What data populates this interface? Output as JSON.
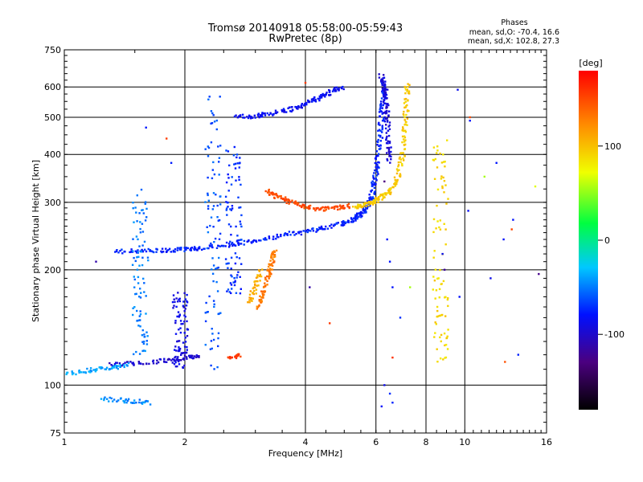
{
  "chart_data": {
    "type": "scatter",
    "title": "Tromsø 20140918 05:58:00-05:59:43",
    "subtitle": "RwPretec (8p)",
    "stats": {
      "heading": "Phases",
      "o_line": "mean, sd,O: -70.4, 16.6",
      "x_line": "mean, sd,X: 102.8, 27.3"
    },
    "xlabel": "Frequency [MHz]",
    "ylabel": "Stationary phase Virtual Height [km]",
    "x_scale": "log",
    "y_scale": "log",
    "xlim": [
      1,
      16
    ],
    "ylim": [
      75,
      750
    ],
    "x_ticks": [
      1,
      2,
      4,
      6,
      8,
      10,
      16
    ],
    "x_tick_labels": [
      "1",
      "2",
      "4",
      "6",
      "8",
      "10",
      "16"
    ],
    "y_ticks": [
      75,
      100,
      200,
      300,
      400,
      500,
      600,
      750
    ],
    "y_tick_labels": [
      "75",
      "100",
      "200",
      "300",
      "400",
      "500",
      "600",
      "750"
    ],
    "grid": true,
    "colorbar": {
      "label": "[deg]",
      "range": [
        -180,
        180
      ],
      "ticks": [
        100,
        0,
        -100
      ],
      "tick_labels": [
        "100",
        "0",
        "-100"
      ],
      "colormap": "rainbow"
    },
    "traces": [
      {
        "phase": -75,
        "points": [
          [
            1.35,
            223
          ],
          [
            1.55,
            224
          ],
          [
            1.8,
            225
          ],
          [
            2.0,
            226
          ],
          [
            2.2,
            228
          ],
          [
            2.6,
            232
          ],
          [
            3.0,
            238
          ],
          [
            3.5,
            246
          ],
          [
            4.0,
            252
          ],
          [
            4.5,
            258
          ],
          [
            5.0,
            265
          ],
          [
            5.3,
            272
          ],
          [
            5.5,
            280
          ],
          [
            5.7,
            290
          ],
          [
            5.85,
            310
          ],
          [
            5.95,
            340
          ],
          [
            6.05,
            380
          ],
          [
            6.15,
            440
          ],
          [
            6.2,
            500
          ],
          [
            6.25,
            560
          ],
          [
            6.3,
            620
          ]
        ]
      },
      {
        "phase": -95,
        "points": [
          [
            6.2,
            640
          ],
          [
            6.3,
            600
          ],
          [
            6.35,
            560
          ],
          [
            6.4,
            500
          ],
          [
            6.45,
            430
          ],
          [
            6.5,
            380
          ]
        ]
      },
      {
        "phase": -100,
        "points": [
          [
            1.3,
            113
          ],
          [
            1.5,
            114
          ],
          [
            1.8,
            116
          ],
          [
            2.0,
            118
          ],
          [
            2.2,
            120
          ]
        ]
      },
      {
        "phase": -85,
        "points": [
          [
            2.7,
            500
          ],
          [
            3.0,
            505
          ],
          [
            3.3,
            510
          ],
          [
            3.7,
            525
          ],
          [
            4.0,
            540
          ],
          [
            4.3,
            560
          ],
          [
            4.6,
            580
          ],
          [
            5.0,
            600
          ]
        ]
      },
      {
        "phase": 150,
        "points": [
          [
            3.2,
            320
          ],
          [
            3.4,
            310
          ],
          [
            3.7,
            300
          ],
          [
            4.0,
            292
          ],
          [
            4.4,
            288
          ],
          [
            4.8,
            290
          ],
          [
            5.2,
            294
          ]
        ]
      },
      {
        "phase": 130,
        "points": [
          [
            3.05,
            160
          ],
          [
            3.15,
            175
          ],
          [
            3.25,
            195
          ],
          [
            3.3,
            210
          ],
          [
            3.35,
            225
          ]
        ]
      },
      {
        "phase": 110,
        "points": [
          [
            2.9,
            165
          ],
          [
            3.0,
            180
          ],
          [
            3.1,
            200
          ]
        ]
      },
      {
        "phase": 95,
        "points": [
          [
            5.3,
            290
          ],
          [
            5.6,
            295
          ],
          [
            5.9,
            300
          ],
          [
            6.2,
            310
          ],
          [
            6.5,
            320
          ],
          [
            6.8,
            350
          ],
          [
            7.0,
            400
          ],
          [
            7.1,
            470
          ],
          [
            7.15,
            540
          ],
          [
            7.2,
            620
          ]
        ]
      },
      {
        "phase": -40,
        "points": [
          [
            1.0,
            107
          ],
          [
            1.15,
            109
          ],
          [
            1.3,
            111
          ],
          [
            1.45,
            113
          ]
        ]
      },
      {
        "phase": -45,
        "points": [
          [
            1.25,
            92
          ],
          [
            1.45,
            91
          ],
          [
            1.65,
            90
          ]
        ]
      },
      {
        "phase": 155,
        "points": [
          [
            2.6,
            118
          ],
          [
            2.75,
            120
          ]
        ]
      }
    ],
    "columns": [
      {
        "phase": -60,
        "x": 2.35,
        "h": [
          110,
          620
        ]
      },
      {
        "phase": -50,
        "x": 1.55,
        "h": [
          120,
          330
        ]
      },
      {
        "phase": -90,
        "x": 1.95,
        "h": [
          110,
          175
        ]
      },
      {
        "phase": -70,
        "x": 2.65,
        "h": [
          170,
          420
        ]
      },
      {
        "phase": 90,
        "x": 8.7,
        "h": [
          110,
          450
        ]
      }
    ],
    "scatter": [
      {
        "phase": -80,
        "points": [
          [
            6.4,
            240
          ],
          [
            6.5,
            210
          ],
          [
            6.6,
            180
          ],
          [
            6.9,
            150
          ],
          [
            6.3,
            100
          ],
          [
            6.5,
            95
          ],
          [
            9.7,
            170
          ],
          [
            10.2,
            285
          ],
          [
            11.6,
            190
          ],
          [
            12.0,
            380
          ],
          [
            13.2,
            270
          ],
          [
            12.5,
            240
          ],
          [
            13.6,
            120
          ],
          [
            9.6,
            590
          ],
          [
            10.3,
            490
          ],
          [
            8.8,
            220
          ],
          [
            6.6,
            90
          ],
          [
            6.2,
            88
          ],
          [
            1.6,
            470
          ],
          [
            1.85,
            380
          ]
        ]
      },
      {
        "phase": 60,
        "points": [
          [
            15.0,
            330
          ],
          [
            11.2,
            350
          ],
          [
            7.3,
            180
          ]
        ]
      },
      {
        "phase": -120,
        "points": [
          [
            15.3,
            195
          ],
          [
            8.9,
            200
          ],
          [
            6.3,
            340
          ],
          [
            4.1,
            180
          ],
          [
            1.2,
            210
          ],
          [
            1.0,
            94
          ]
        ]
      },
      {
        "phase": 155,
        "points": [
          [
            13.1,
            255
          ],
          [
            12.6,
            115
          ],
          [
            6.6,
            118
          ],
          [
            4.6,
            145
          ],
          [
            1.8,
            440
          ],
          [
            4.0,
            615
          ],
          [
            10.3,
            500
          ]
        ]
      }
    ]
  }
}
